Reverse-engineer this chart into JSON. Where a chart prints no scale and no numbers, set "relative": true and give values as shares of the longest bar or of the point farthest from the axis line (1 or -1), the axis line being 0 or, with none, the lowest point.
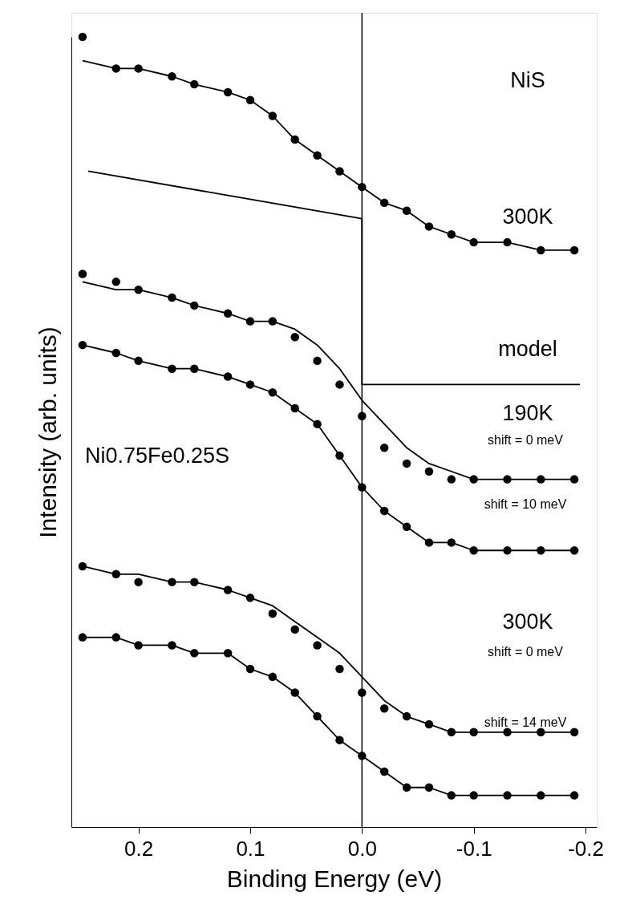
{
  "chart_data": {
    "type": "line",
    "relative": true,
    "xlabel": "Binding Energy (eV)",
    "ylabel": "Intensity (arb. units)",
    "xlim": [
      0.26,
      -0.21
    ],
    "xticks": [
      {
        "value": 0.2,
        "label": "0.2"
      },
      {
        "value": 0.1,
        "label": "0.1"
      },
      {
        "value": 0,
        "label": "0.0"
      },
      {
        "value": -0.1,
        "label": "-0.1"
      },
      {
        "value": -0.2,
        "label": "-0.2"
      }
    ],
    "grid": false,
    "tick_labels": "x",
    "line_style": "solid",
    "ref_lines": [
      {
        "axis": "x",
        "value": 0,
        "color": "#000000"
      }
    ],
    "x": [
      0.25,
      0.22,
      0.2,
      0.17,
      0.15,
      0.12,
      0.1,
      0.08,
      0.06,
      0.04,
      0.02,
      0.0,
      -0.02,
      -0.04,
      -0.06,
      -0.08,
      -0.1,
      -0.13,
      -0.16,
      -0.19
    ],
    "series": [
      {
        "type": "scatter",
        "marker": "circle",
        "color": "#000000",
        "values": [
          1.0,
          0.96,
          0.96,
          0.95,
          0.94,
          0.93,
          0.92,
          0.9,
          0.87,
          0.85,
          0.83,
          0.81,
          0.79,
          0.78,
          0.76,
          0.75,
          0.74,
          0.74,
          0.73,
          0.73
        ]
      },
      {
        "color": "#000000",
        "values": [
          0.97,
          0.96,
          0.96,
          0.95,
          0.94,
          0.93,
          0.92,
          0.9,
          0.87,
          0.85,
          0.83,
          0.81,
          0.79,
          0.78,
          0.76,
          0.75,
          0.74,
          0.74,
          0.73,
          0.73
        ]
      },
      {
        "color": "#000000",
        "x": [
          0.245,
          0.0,
          0.0,
          -0.195
        ],
        "values": [
          0.83,
          0.77,
          0.56,
          0.56
        ]
      },
      {
        "type": "scatter",
        "marker": "circle",
        "color": "#000000",
        "values": [
          0.7,
          0.69,
          0.68,
          0.67,
          0.66,
          0.65,
          0.64,
          0.64,
          0.62,
          0.59,
          0.56,
          0.52,
          0.48,
          0.46,
          0.45,
          0.44,
          0.44,
          0.44,
          0.44,
          0.44
        ]
      },
      {
        "color": "#000000",
        "values": [
          0.69,
          0.68,
          0.68,
          0.67,
          0.66,
          0.65,
          0.64,
          0.64,
          0.63,
          0.61,
          0.58,
          0.54,
          0.51,
          0.48,
          0.46,
          0.45,
          0.44,
          0.44,
          0.44,
          0.44
        ]
      },
      {
        "type": "scatter",
        "marker": "circle",
        "color": "#000000",
        "values": [
          0.61,
          0.6,
          0.59,
          0.58,
          0.58,
          0.57,
          0.56,
          0.55,
          0.53,
          0.51,
          0.47,
          0.43,
          0.4,
          0.38,
          0.36,
          0.36,
          0.35,
          0.35,
          0.35,
          0.35
        ]
      },
      {
        "color": "#000000",
        "values": [
          0.61,
          0.6,
          0.59,
          0.58,
          0.58,
          0.57,
          0.56,
          0.55,
          0.53,
          0.51,
          0.47,
          0.43,
          0.4,
          0.38,
          0.36,
          0.36,
          0.35,
          0.35,
          0.35,
          0.35
        ]
      },
      {
        "type": "scatter",
        "marker": "circle",
        "color": "#000000",
        "values": [
          0.33,
          0.32,
          0.31,
          0.31,
          0.31,
          0.3,
          0.29,
          0.27,
          0.25,
          0.23,
          0.2,
          0.17,
          0.15,
          0.14,
          0.13,
          0.12,
          0.12,
          0.12,
          0.12,
          0.12
        ]
      },
      {
        "color": "#000000",
        "values": [
          0.33,
          0.32,
          0.32,
          0.31,
          0.31,
          0.3,
          0.29,
          0.28,
          0.26,
          0.24,
          0.22,
          0.19,
          0.16,
          0.14,
          0.13,
          0.12,
          0.12,
          0.12,
          0.12,
          0.12
        ]
      },
      {
        "type": "scatter",
        "marker": "circle",
        "color": "#000000",
        "values": [
          0.24,
          0.24,
          0.23,
          0.23,
          0.22,
          0.22,
          0.2,
          0.19,
          0.17,
          0.14,
          0.11,
          0.09,
          0.07,
          0.05,
          0.05,
          0.04,
          0.04,
          0.04,
          0.04,
          0.04
        ]
      },
      {
        "color": "#000000",
        "values": [
          0.24,
          0.24,
          0.23,
          0.23,
          0.22,
          0.22,
          0.2,
          0.19,
          0.17,
          0.14,
          0.11,
          0.09,
          0.07,
          0.05,
          0.05,
          0.04,
          0.04,
          0.04,
          0.04,
          0.04
        ]
      }
    ],
    "annotations": [
      "NiS",
      "300K",
      "model",
      "190K",
      "shift = 0 meV",
      "shift = 10 meV",
      "300K",
      "shift = 0 meV",
      "shift = 14 meV",
      "Ni0.75Fe0.25S"
    ]
  }
}
